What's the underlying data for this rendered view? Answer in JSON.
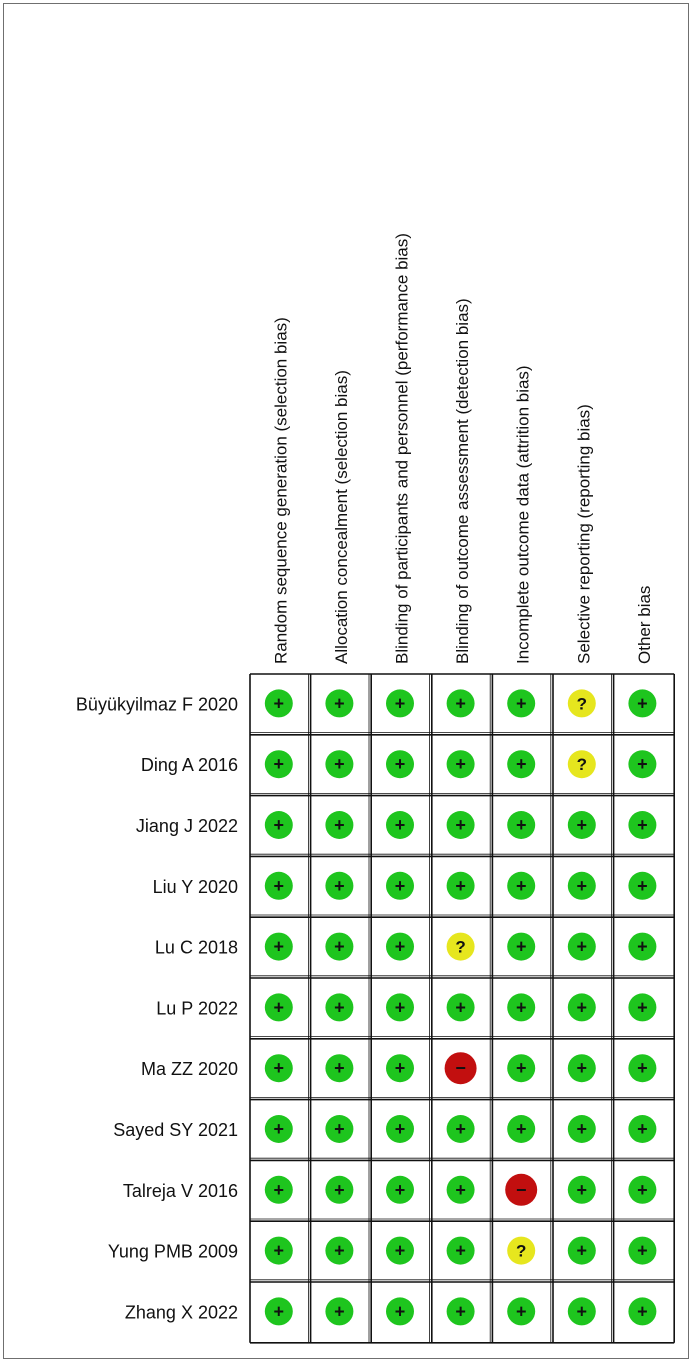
{
  "chart_data": {
    "type": "table",
    "domains": [
      "Random sequence generation (selection bias)",
      "Allocation concealment (selection bias)",
      "Blinding of participants and personnel (performance bias)",
      "Blinding of outcome assessment (detection bias)",
      "Incomplete outcome data (attrition bias)",
      "Selective reporting (reporting bias)",
      "Other bias"
    ],
    "studies": [
      {
        "name": "Büyükyilmaz F 2020",
        "judgements": [
          "low",
          "low",
          "low",
          "low",
          "low",
          "unclear",
          "low"
        ]
      },
      {
        "name": "Ding A 2016",
        "judgements": [
          "low",
          "low",
          "low",
          "low",
          "low",
          "unclear",
          "low"
        ]
      },
      {
        "name": "Jiang J 2022",
        "judgements": [
          "low",
          "low",
          "low",
          "low",
          "low",
          "low",
          "low"
        ]
      },
      {
        "name": "Liu Y 2020",
        "judgements": [
          "low",
          "low",
          "low",
          "low",
          "low",
          "low",
          "low"
        ]
      },
      {
        "name": "Lu C 2018",
        "judgements": [
          "low",
          "low",
          "low",
          "unclear",
          "low",
          "low",
          "low"
        ]
      },
      {
        "name": "Lu P 2022",
        "judgements": [
          "low",
          "low",
          "low",
          "low",
          "low",
          "low",
          "low"
        ]
      },
      {
        "name": "Ma ZZ 2020",
        "judgements": [
          "low",
          "low",
          "low",
          "high",
          "low",
          "low",
          "low"
        ]
      },
      {
        "name": "Sayed SY 2021",
        "judgements": [
          "low",
          "low",
          "low",
          "low",
          "low",
          "low",
          "low"
        ]
      },
      {
        "name": "Talreja V 2016",
        "judgements": [
          "low",
          "low",
          "low",
          "low",
          "high",
          "low",
          "low"
        ]
      },
      {
        "name": "Yung PMB 2009",
        "judgements": [
          "low",
          "low",
          "low",
          "low",
          "unclear",
          "low",
          "low"
        ]
      },
      {
        "name": "Zhang X 2022",
        "judgements": [
          "low",
          "low",
          "low",
          "low",
          "low",
          "low",
          "low"
        ]
      }
    ],
    "legend": {
      "low": {
        "symbol": "+",
        "color": "#1ec51e"
      },
      "unclear": {
        "symbol": "?",
        "color": "#e6e61e"
      },
      "high": {
        "symbol": "−",
        "color": "#c20f0f"
      }
    }
  }
}
